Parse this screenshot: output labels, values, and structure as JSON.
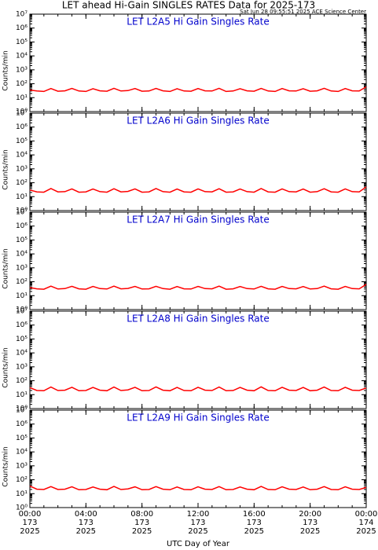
{
  "title": "LET ahead Hi-Gain SINGLES RATES Data for 2025-173",
  "timestamp": "Sat Jun 28 09:55:51 2025 ACE Science Center",
  "xlabel": "UTC Day of Year",
  "xlim": [
    0,
    24
  ],
  "xticks": [
    {
      "value": 0,
      "label": "00:00\n173\n2025"
    },
    {
      "value": 4,
      "label": "04:00\n173\n2025"
    },
    {
      "value": 8,
      "label": "08:00\n173\n2025"
    },
    {
      "value": 12,
      "label": "12:00\n173\n2025"
    },
    {
      "value": 16,
      "label": "16:00\n173\n2025"
    },
    {
      "value": 20,
      "label": "20:00\n173\n2025"
    },
    {
      "value": 24,
      "label": "00:00\n174\n2025"
    }
  ],
  "x": [
    0,
    0.5,
    1,
    1.5,
    2,
    2.5,
    3,
    3.5,
    4,
    4.5,
    5,
    5.5,
    6,
    6.5,
    7,
    7.5,
    8,
    8.5,
    9,
    9.5,
    10,
    10.5,
    11,
    11.5,
    12,
    12.5,
    13,
    13.5,
    14,
    14.5,
    15,
    15.5,
    16,
    16.5,
    17,
    17.5,
    18,
    18.5,
    19,
    19.5,
    20,
    20.5,
    21,
    21.5,
    22,
    22.5,
    23,
    23.5,
    24
  ],
  "chart_data": [
    {
      "type": "line",
      "title": "LET L2A5 Hi Gain Singles Rate",
      "ylabel": "Counts/min",
      "log": true,
      "color": "#ff0000",
      "ylim": [
        1,
        10000000
      ],
      "yticks": [
        {
          "value": 1,
          "label": "10⁰"
        },
        {
          "value": 10,
          "label": "10¹"
        },
        {
          "value": 100,
          "label": "10²"
        },
        {
          "value": 1000,
          "label": "10³"
        },
        {
          "value": 10000,
          "label": "10⁴"
        },
        {
          "value": 100000,
          "label": "10⁵"
        },
        {
          "value": 1000000,
          "label": "10⁶"
        },
        {
          "value": 10000000,
          "label": "10⁷"
        }
      ],
      "values": [
        35,
        30,
        28,
        45,
        29,
        31,
        46,
        30,
        28,
        44,
        31,
        29,
        47,
        30,
        32,
        45,
        29,
        30,
        46,
        31,
        28,
        44,
        30,
        29,
        45,
        31,
        30,
        47,
        28,
        30,
        44,
        31,
        29,
        46,
        30,
        28,
        45,
        31,
        30,
        44,
        29,
        31,
        47,
        30,
        28,
        45,
        31,
        30,
        60
      ]
    },
    {
      "type": "line",
      "title": "LET L2A6 Hi Gain Singles Rate",
      "ylabel": "Counts/min",
      "log": true,
      "color": "#ff0000",
      "ylim": [
        1,
        10000000
      ],
      "yticks": [
        {
          "value": 1,
          "label": "10⁰"
        },
        {
          "value": 10,
          "label": "10¹"
        },
        {
          "value": 100,
          "label": "10²"
        },
        {
          "value": 1000,
          "label": "10³"
        },
        {
          "value": 10000,
          "label": "10⁴"
        },
        {
          "value": 100000,
          "label": "10⁵"
        },
        {
          "value": 1000000,
          "label": "10⁶"
        },
        {
          "value": 10000000,
          "label": "10⁷"
        }
      ],
      "values": [
        30,
        22,
        21,
        38,
        22,
        23,
        36,
        21,
        22,
        35,
        23,
        21,
        37,
        22,
        24,
        36,
        21,
        22,
        38,
        23,
        21,
        35,
        22,
        21,
        36,
        23,
        22,
        37,
        21,
        22,
        35,
        23,
        21,
        38,
        22,
        21,
        36,
        23,
        22,
        35,
        21,
        23,
        37,
        22,
        21,
        36,
        23,
        22,
        50
      ]
    },
    {
      "type": "line",
      "title": "LET L2A7 Hi Gain Singles Rate",
      "ylabel": "Counts/min",
      "log": true,
      "color": "#ff0000",
      "ylim": [
        1,
        10000000
      ],
      "yticks": [
        {
          "value": 1,
          "label": "10⁰"
        },
        {
          "value": 10,
          "label": "10¹"
        },
        {
          "value": 100,
          "label": "10²"
        },
        {
          "value": 1000,
          "label": "10³"
        },
        {
          "value": 10000,
          "label": "10⁴"
        },
        {
          "value": 100000,
          "label": "10⁵"
        },
        {
          "value": 1000000,
          "label": "10⁶"
        },
        {
          "value": 10000000,
          "label": "10⁷"
        }
      ],
      "values": [
        38,
        31,
        29,
        48,
        30,
        32,
        47,
        31,
        29,
        46,
        32,
        30,
        48,
        31,
        33,
        46,
        30,
        31,
        47,
        32,
        29,
        45,
        31,
        30,
        46,
        32,
        31,
        48,
        29,
        31,
        45,
        32,
        30,
        47,
        31,
        29,
        46,
        32,
        31,
        45,
        30,
        32,
        48,
        31,
        29,
        46,
        32,
        31,
        65
      ]
    },
    {
      "type": "line",
      "title": "LET L2A8 Hi Gain Singles Rate",
      "ylabel": "Counts/min",
      "log": true,
      "color": "#ff0000",
      "ylim": [
        1,
        10000000
      ],
      "yticks": [
        {
          "value": 1,
          "label": "10⁰"
        },
        {
          "value": 10,
          "label": "10¹"
        },
        {
          "value": 100,
          "label": "10²"
        },
        {
          "value": 1000,
          "label": "10³"
        },
        {
          "value": 10000,
          "label": "10⁴"
        },
        {
          "value": 100000,
          "label": "10⁵"
        },
        {
          "value": 1000000,
          "label": "10⁶"
        },
        {
          "value": 10000000,
          "label": "10⁷"
        }
      ],
      "values": [
        32,
        20,
        19,
        35,
        20,
        21,
        34,
        19,
        20,
        33,
        21,
        19,
        35,
        20,
        22,
        34,
        19,
        20,
        36,
        21,
        19,
        33,
        20,
        19,
        34,
        21,
        20,
        35,
        19,
        20,
        33,
        21,
        19,
        36,
        20,
        19,
        34,
        21,
        20,
        33,
        19,
        21,
        35,
        20,
        19,
        34,
        21,
        20,
        30
      ]
    },
    {
      "type": "line",
      "title": "LET L2A9 Hi Gain Singles Rate",
      "ylabel": "Counts/min",
      "log": true,
      "color": "#ff0000",
      "ylim": [
        1,
        10000000
      ],
      "yticks": [
        {
          "value": 1,
          "label": "10⁰"
        },
        {
          "value": 10,
          "label": "10¹"
        },
        {
          "value": 100,
          "label": "10²"
        },
        {
          "value": 1000,
          "label": "10³"
        },
        {
          "value": 10000,
          "label": "10⁴"
        },
        {
          "value": 100000,
          "label": "10⁵"
        },
        {
          "value": 1000000,
          "label": "10⁶"
        },
        {
          "value": 10000000,
          "label": "10⁷"
        }
      ],
      "values": [
        35,
        21,
        20,
        32,
        20,
        21,
        31,
        19,
        20,
        30,
        21,
        19,
        33,
        20,
        22,
        31,
        19,
        20,
        32,
        21,
        19,
        30,
        20,
        19,
        31,
        21,
        20,
        32,
        19,
        20,
        30,
        21,
        19,
        33,
        20,
        19,
        31,
        21,
        20,
        30,
        19,
        21,
        32,
        20,
        19,
        31,
        21,
        20,
        28
      ]
    }
  ]
}
